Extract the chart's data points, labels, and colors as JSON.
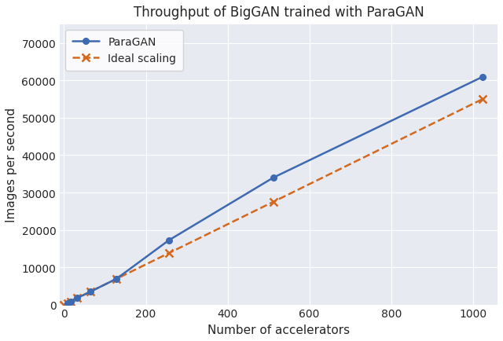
{
  "title": "Throughput of BigGAN trained with ParaGAN",
  "xlabel": "Number of accelerators",
  "ylabel": "Images per second",
  "paragan_x": [
    8,
    16,
    32,
    64,
    128,
    256,
    512,
    1024
  ],
  "paragan_y": [
    430,
    860,
    1720,
    3440,
    6880,
    17200,
    34000,
    61000
  ],
  "ideal_x": [
    0,
    8,
    16,
    32,
    64,
    128,
    256,
    512,
    1024
  ],
  "ideal_y": [
    0,
    430,
    860,
    1720,
    3440,
    6880,
    13760,
    27520,
    55040
  ],
  "paragan_color": "#3d6ab0",
  "ideal_color": "#d2691e",
  "bg_color": "#e8eaf2",
  "grid_color": "white",
  "xlim": [
    -10,
    1060
  ],
  "ylim": [
    0,
    75000
  ],
  "yticks": [
    0,
    10000,
    20000,
    30000,
    40000,
    50000,
    60000,
    70000
  ],
  "xticks": [
    0,
    200,
    400,
    600,
    800,
    1000
  ]
}
